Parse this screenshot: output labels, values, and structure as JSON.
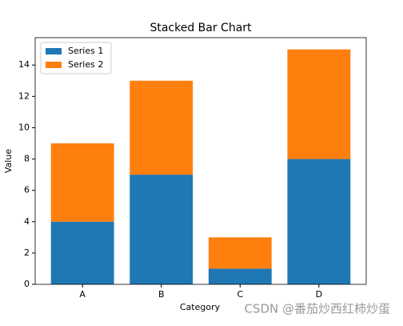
{
  "chart_data": {
    "type": "stacked_bar",
    "title": "Stacked Bar Chart",
    "xlabel": "Category",
    "ylabel": "Value",
    "categories": [
      "A",
      "B",
      "C",
      "D"
    ],
    "series": [
      {
        "name": "Series 1",
        "color": "#1f77b4",
        "values": [
          4,
          7,
          1,
          8
        ]
      },
      {
        "name": "Series 2",
        "color": "#ff7f0e",
        "values": [
          5,
          6,
          2,
          7
        ]
      }
    ],
    "ylim": [
      0,
      15.75
    ],
    "yticks": [
      0,
      2,
      4,
      6,
      8,
      10,
      12,
      14
    ],
    "legend": "upper left"
  },
  "watermark": "CSDN @番茄炒西红柿炒蛋"
}
